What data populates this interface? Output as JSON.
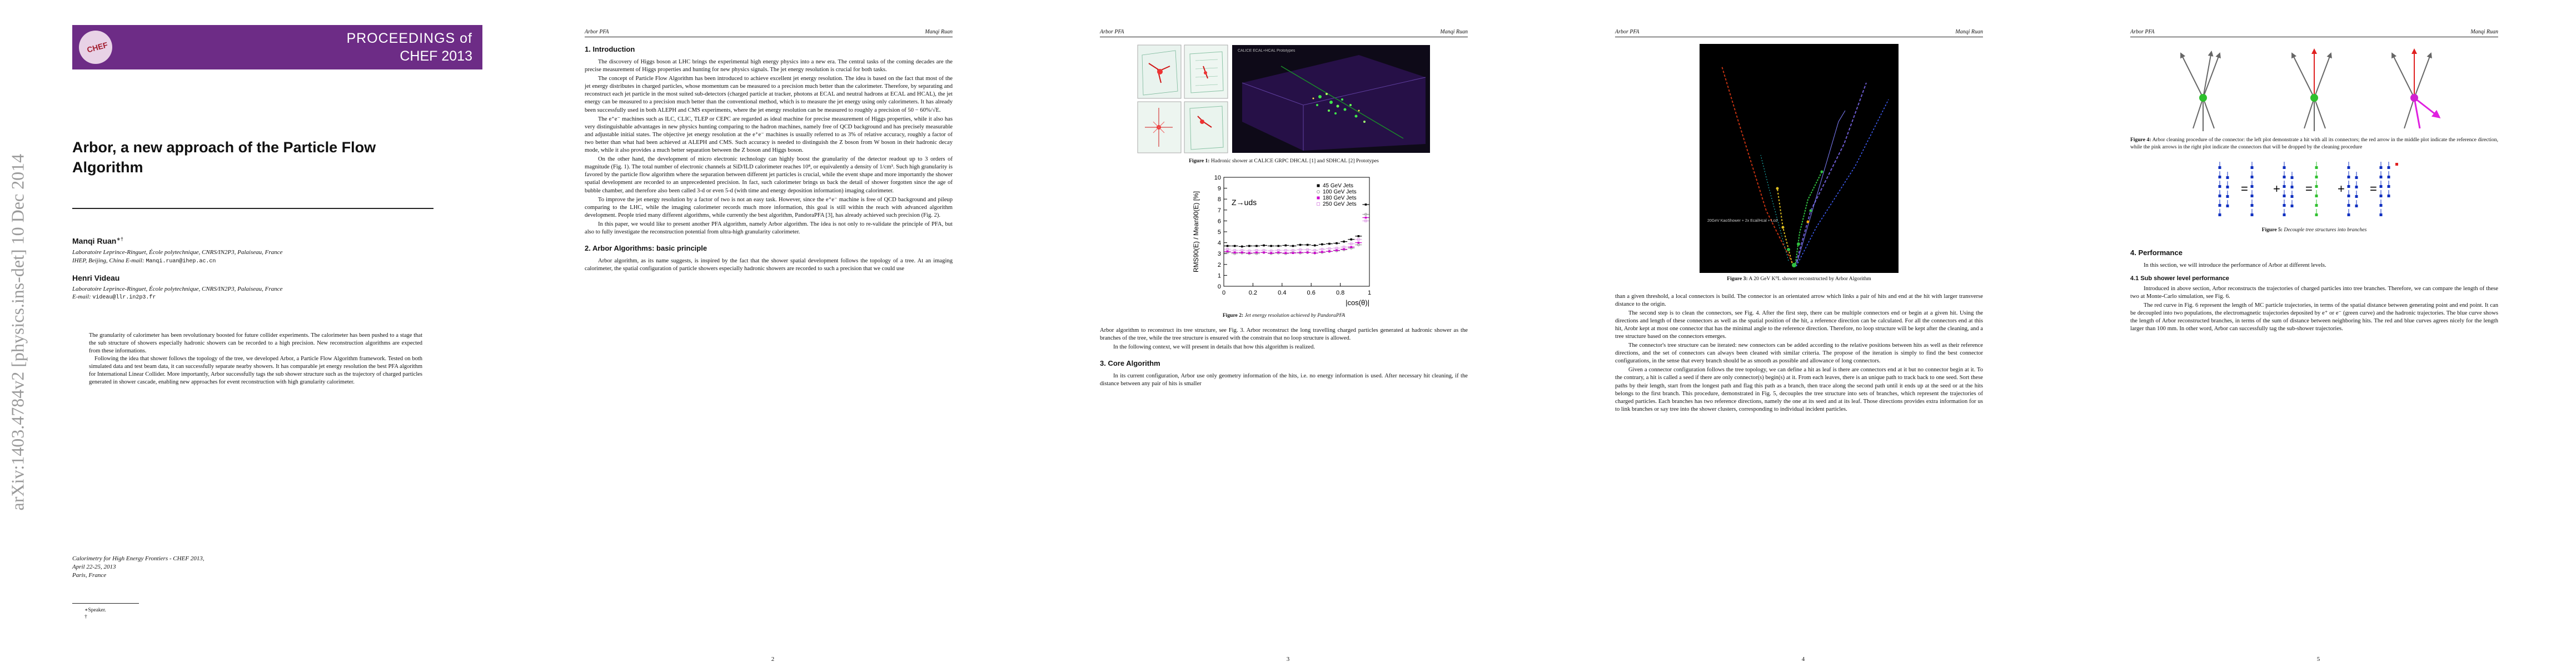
{
  "page1": {
    "banner_line1": "PROCEEDINGS of",
    "banner_line2": "CHEF 2013",
    "logo_text": "CHEF",
    "arxiv_id": "arXiv:1403.4784v2  [physics.ins-det]  10 Dec 2014",
    "title": "Arbor, a new approach of the Particle Flow Algorithm",
    "author1": "Manqi Ruan",
    "author1_sup": "∗†",
    "author1_aff1": "Laboratoire Leprince-Ringuet, École polytechnique, CNRS/IN2P3, Palaiseau, France",
    "author1_aff2": "IHEP, Beijing, China",
    "author1_email_label": "E-mail:",
    "author1_email": "Manqi.ruan@ihep.ac.cn",
    "author2": "Henri Videau",
    "author2_aff": "Laboratoire Leprince-Ringuet, École polytechnique, CNRS/IN2P3, Palaiseau, France",
    "author2_email_label": "E-mail:",
    "author2_email": "videau@llr.in2p3.fr",
    "abstract_p1": "The granularity of calorimeter has been revolutionary boosted for future collider experiments. The calorimeter has been pushed to a stage that the sub structure of showers especially hadronic showers can be recorded to a high precision. New reconstruction algorithms are expected from these informations.",
    "abstract_p2": "Following the idea that shower follows the topology of the tree, we developed Arbor, a Particle Flow Algorithm framework. Tested on both simulated data and test beam data, it can successfully separate nearby showers. It has comparable jet energy resolution the best PFA algorithm for International Linear Collider. More importantly, Arbor successfully tags the sub shower structure such as the trajectory of charged particles generated in shower cascade, enabling new approaches for event reconstruction with high granularity calorimeter.",
    "conf_line1": "Calorimetry for High Energy Frontiers - CHEF 2013,",
    "conf_line2": "April 22-25, 2013",
    "conf_line3": "Paris, France",
    "footnote1": "∗Speaker.",
    "footnote2": "†",
    "page_num": ""
  },
  "header_left": "Arbor PFA",
  "header_right": "Manqi Ruan",
  "page2": {
    "sec1": "1. Introduction",
    "p1": "The discovery of Higgs boson at LHC brings the experimental high energy physics into a new era. The central tasks of the coming decades are the precise measurement of Higgs properties and hunting for new physics signals. The jet energy resolution is crucial for both tasks.",
    "p2": "The concept of Particle Flow Algorithm has been introduced to achieve excellent jet energy resolution. The idea is based on the fact that most of the jet energy distributes in charged particles, whose momentum can be measured to a precision much better than the calorimeter. Therefore, by separating and reconstruct each jet particle in the most suited sub-detectors (charged particle at tracker, photons at ECAL and neutral hadrons at ECAL and HCAL), the jet energy can be measured to a precision much better than the conventional method, which is to measure the jet energy using only calorimeters. It has already been successfully used in both ALEPH and CMS experiments, where the jet energy resolution can be measured to roughly a precision of 50 − 60%/√E.",
    "p3": "The e⁺e⁻ machines such as ILC, CLIC, TLEP or CEPC are regarded as ideal machine for precise measurement of Higgs properties, while it also has very distinguishable advantages in new physics hunting comparing to the hadron machines, namely free of QCD background and has precisely measurable and adjustable initial states. The objective jet energy resolution at the e⁺e⁻ machines is usually referred to as 3% of relative accuracy, roughly a factor of two better than what had been achieved at ALEPH and CMS. Such accuracy is needed to distinguish the Z boson from W boson in their hadronic decay mode, while it also provides a much better separation between the Z boson and Higgs boson.",
    "p4": "On the other hand, the development of micro electronic technology can highly boost the granularity of the detector readout up to 3 orders of magnitude (Fig. 1). The total number of electronic channels at SiD/ILD calorimeter reaches 10⁸, or equivalently a density of 1/cm³. Such high granularity is favored by the particle flow algorithm where the separation between different jet particles is crucial, while the event shape and more importantly the shower spatial development are recorded to an unprecedented precision. In fact, such calorimeter brings us back the detail of shower forgotten since the age of bubble chamber, and therefore also been called 3-d or even 5-d (with time and energy deposition information) imaging calorimeter.",
    "p5": "To improve the jet energy resolution by a factor of two is not an easy task. However, since the e⁺e⁻ machine is free of QCD background and pileup comparing to the LHC, while the imaging calorimeter records much more information, this goal is still within the reach with advanced algorithm development. People tried many different algorithms, while currently the best algorithm, PandoraPFA [3], has already achieved such precision (Fig. 2).",
    "p6": "In this paper, we would like to present another PFA algorithm, namely Arbor algorithm. The idea is not only to re-validate the principle of PFA, but also to fully investigate the reconstruction potential from ultra-high granularity calorimeter.",
    "sec2": "2. Arbor Algorithms: basic principle",
    "p7": "Arbor algorithm, as its name suggests, is inspired by the fact that the shower spatial development follows the topology of a tree. At an imaging calorimeter, the spatial configuration of particle showers especially hadronic showers are recorded to such a precision that we could use",
    "page_num": "2"
  },
  "page3": {
    "fig1_caption_label": "Figure 1:",
    "fig1_caption": "Hadronic shower at CALICE GRPC DHCAL [1] and SDHCAL [2] Prototypes",
    "fig1_tag": "CALICE ECAL+HCAL Prototypes",
    "chart_data": {
      "type": "line",
      "title": "",
      "annotation": "Z→uds",
      "xlabel": "|cos(θ)|",
      "ylabel": "RMS90(E) / Mean90(E) [%]",
      "xlim": [
        0,
        1
      ],
      "ylim": [
        0,
        10
      ],
      "xticks": [
        "0",
        "0.2",
        "0.4",
        "0.6",
        "0.8",
        "1"
      ],
      "yticks": [
        "0",
        "1",
        "2",
        "3",
        "4",
        "5",
        "6",
        "7",
        "8",
        "9",
        "10"
      ],
      "legend_position": "top-right",
      "x": [
        0.025,
        0.075,
        0.125,
        0.175,
        0.225,
        0.275,
        0.325,
        0.375,
        0.425,
        0.475,
        0.525,
        0.575,
        0.625,
        0.675,
        0.725,
        0.775,
        0.825,
        0.875,
        0.925,
        0.975
      ],
      "series": [
        {
          "name": "45 GeV Jets",
          "color": "#000000",
          "values": [
            3.7,
            3.7,
            3.65,
            3.7,
            3.7,
            3.75,
            3.7,
            3.7,
            3.75,
            3.7,
            3.8,
            3.8,
            3.75,
            3.85,
            3.9,
            3.95,
            4.1,
            4.3,
            4.6,
            7.5
          ]
        },
        {
          "name": "100 GeV Jets",
          "color": "#9c9c9c",
          "values": [
            3.1,
            3.0,
            3.05,
            3.0,
            3.0,
            3.1,
            3.0,
            3.05,
            3.0,
            3.1,
            3.05,
            3.1,
            3.05,
            3.1,
            3.2,
            3.25,
            3.35,
            3.5,
            3.8,
            6.6
          ]
        },
        {
          "name": "180 GeV Jets",
          "color": "#cc00cc",
          "values": [
            3.2,
            3.1,
            3.1,
            3.05,
            3.1,
            3.1,
            3.05,
            3.1,
            3.05,
            3.05,
            3.1,
            3.1,
            3.05,
            3.15,
            3.2,
            3.3,
            3.4,
            3.6,
            4.0,
            6.3
          ]
        },
        {
          "name": "250 GeV Jets",
          "color": "#e0a0e8",
          "values": [
            3.4,
            3.3,
            3.3,
            3.25,
            3.3,
            3.3,
            3.25,
            3.3,
            3.3,
            3.3,
            3.35,
            3.35,
            3.3,
            3.4,
            3.45,
            3.5,
            3.6,
            3.9,
            4.3,
            6.0
          ]
        }
      ]
    },
    "fig2_caption_label": "Figure 2:",
    "fig2_caption": "Jet energy resolution achieved by PandoraPFA",
    "p1": "Arbor algorithm to reconstruct its tree structure, see Fig. 3. Arbor reconstruct the long travelling charged particles generated at hadronic shower as the branches of the tree, while the tree structure is ensured with the constrain that no loop structure is allowed.",
    "p2": "In the following context, we will present in details that how this algorithm is realized.",
    "sec3": "3. Core Algorithm",
    "p3": "In its current configuration, Arbor use only geometry information of the hits, i.e. no energy information is used. After necessary hit cleaning, if the distance between any pair of hits is smaller",
    "page_num": "3"
  },
  "page4": {
    "fig3_caption_label": "Figure 3:",
    "fig3_caption": "A 20 GeV K⁰L shower reconstructed by Arbor Algorithm",
    "fig3_inset": "20GeV KaoShower + 2x Ecal/Hcal + Lcd",
    "p1": "than a given threshold, a local connectors is build. The connector is an orientated arrow which links a pair of hits and end at the hit with larger transverse distance to the origin.",
    "p2": "The second step is to clean the connectors, see Fig. 4. After the first step, there can be multiple connectors end or begin at a given hit. Using the directions and length of these connectors as well as the spatial position of the hit, a reference direction can be calculated. For all the connectors end at this hit, Arobr kept at most one connector that has the minimal angle to the reference direction. Therefore, no loop structure will be kept after the cleaning, and a tree structure based on the connectors emerges.",
    "p3": "The connector's tree structure can be iterated: new connectors can be added according to the relative positions between hits as well as their reference directions, and the set of connectors can always been cleaned with similar criteria. The propose of the iteration is simply to find the best connector configurations, in the sense that every branch should be as smooth as possible and allowance of long connectors.",
    "p4": "Given a connector configuration follows the tree topology, we can define a hit as leaf is there are connectors end at it but no connector begin at it. To the contrary, a hit is called a seed if there are only connector(s) begin(s) at it. From each leaves, there is an unique path to track back to one seed. Sort these paths by their length, start from the longest path and flag this path as a branch, then trace along the second path until it ends up at the seed or at the hits belongs to the first branch. This procedure, demonstrated in Fig. 5, decouples the tree structure into sets of branches, which represent the trajectories of charged particles. Each branches has two reference directions, namely the one at its seed and at its leaf. Those directions provides extra information for us to link branches or say tree into the shower clusters, corresponding to individual incident particles.",
    "page_num": "4"
  },
  "page5": {
    "fig4_caption_label": "Figure 4:",
    "fig4_caption": "Arbor cleaning procedure of the connector: the left plot demonstrate a hit with all its connectors; the red arrow in the middle plot indicate the reference direction, while the pink arrows in the right plot indicate the connectors that will be dropped by the cleaning procedure",
    "fig5_caption_label": "Figure 5:",
    "fig5_caption": "Decouple tree structures into branches",
    "fig5_ops": [
      "=",
      "+",
      "=",
      "+",
      "="
    ],
    "sec4": "4. Performance",
    "p1": "In this section, we will introduce the performance of Arbor at different levels.",
    "sec41": "4.1 Sub shower level performance",
    "p2": "Introduced in above section, Arbor reconstructs the trajectories of charged particles into tree branches. Therefore, we can compare the length of these two at Monte-Carlo simulation, see Fig. 6.",
    "p3": "The red curve in Fig. 6 represent the length of MC particle trajectories, in terms of the spatial distance between generating point and end point. It can be decoupled into two populations, the electromagnetic trajectories deposited by e⁺ or e⁻ (green curve) and the hadronic trajectories. The blue curve shows the length of Arbor reconstructed branches, in terms of the sum of distance between neighboring hits. The red and blue curves agrees nicely for the length larger than 100 mm. In other word, Arbor can successfully tag the sub-shower trajectories.",
    "page_num": "5"
  }
}
